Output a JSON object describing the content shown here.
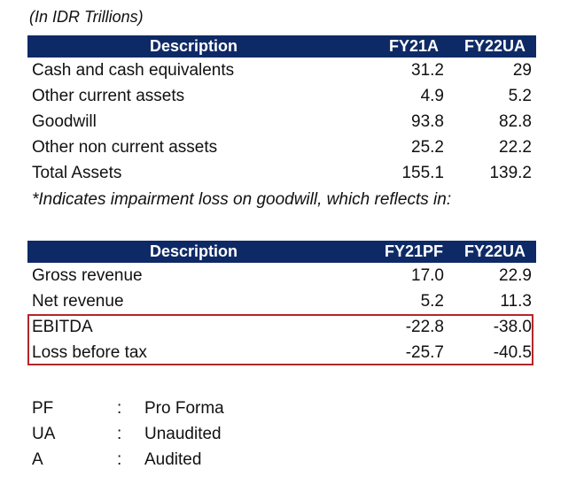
{
  "unit_note": "(In IDR Trillions)",
  "balance_table": {
    "headers": [
      "Description",
      "FY21A",
      "FY22UA"
    ],
    "rows": [
      {
        "label": "Cash and cash equivalents",
        "c1": "31.2",
        "c2": "29"
      },
      {
        "label": "Other current assets",
        "c1": "4.9",
        "c2": "5.2"
      },
      {
        "label": "Goodwill",
        "c1": "93.8",
        "c2": "82.8"
      },
      {
        "label": "Other non current assets",
        "c1": "25.2",
        "c2": "22.2"
      },
      {
        "label": "Total Assets",
        "c1": "155.1",
        "c2": "139.2"
      }
    ]
  },
  "footnote": "*Indicates impairment loss on goodwill, which reflects in:",
  "income_table": {
    "headers": [
      "Description",
      "FY21PF",
      "FY22UA"
    ],
    "rows": [
      {
        "label": "Gross revenue",
        "c1": "17.0",
        "c2": "22.9"
      },
      {
        "label": "Net revenue",
        "c1": "5.2",
        "c2": "11.3"
      },
      {
        "label": "EBITDA",
        "c1": "-22.8",
        "c2": "-38.0"
      },
      {
        "label": "Loss before tax",
        "c1": "-25.7",
        "c2": "-40.5"
      }
    ]
  },
  "legend": [
    {
      "abbr": "PF",
      "sep": ":",
      "def": "Pro Forma"
    },
    {
      "abbr": "UA",
      "sep": ":",
      "def": "Unaudited"
    },
    {
      "abbr": "A",
      "sep": ":",
      "def": "Audited"
    }
  ],
  "colors": {
    "header_bg": "#0e2a66",
    "highlight_border": "#b3262a"
  }
}
